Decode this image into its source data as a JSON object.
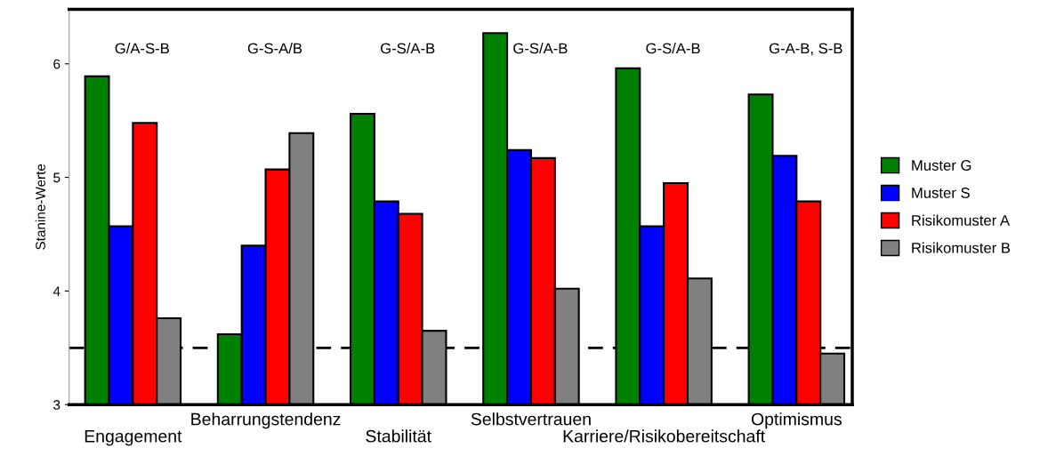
{
  "chart_data": {
    "type": "bar",
    "ylabel": "Stanine-Werte",
    "categories": [
      "Engagement",
      "Beharrungstendenz",
      "Stabilität",
      "Selbstvertrauen",
      "Karriere/Risikobereitschaft",
      "Optimismus"
    ],
    "series": [
      {
        "name": "Muster G",
        "color": "#008000",
        "values": [
          5.89,
          3.62,
          5.56,
          6.27,
          5.96,
          5.73
        ]
      },
      {
        "name": "Muster S",
        "color": "#0000ff",
        "values": [
          4.57,
          4.4,
          4.79,
          5.24,
          4.57,
          5.19
        ]
      },
      {
        "name": "Risikomuster A",
        "color": "#ff0000",
        "values": [
          5.48,
          5.07,
          4.68,
          5.17,
          4.95,
          4.79
        ]
      },
      {
        "name": "Risikomuster B",
        "color": "#808080",
        "values": [
          3.76,
          5.39,
          3.65,
          4.02,
          4.11,
          3.45
        ]
      }
    ],
    "ylim": [
      3,
      6.48
    ],
    "yticks": [
      3,
      4,
      5,
      6
    ],
    "ref_lines": [
      {
        "axis": "y",
        "value": 3.5,
        "color": "#000000",
        "line_style": "dashed"
      }
    ],
    "annotations": [
      "G/A-S-B",
      "G-S-A/B",
      "G-S/A-B",
      "G-S/A-B",
      "G-S/A-B",
      "G-A-B, S-B"
    ],
    "legend": "right",
    "grid": false
  }
}
